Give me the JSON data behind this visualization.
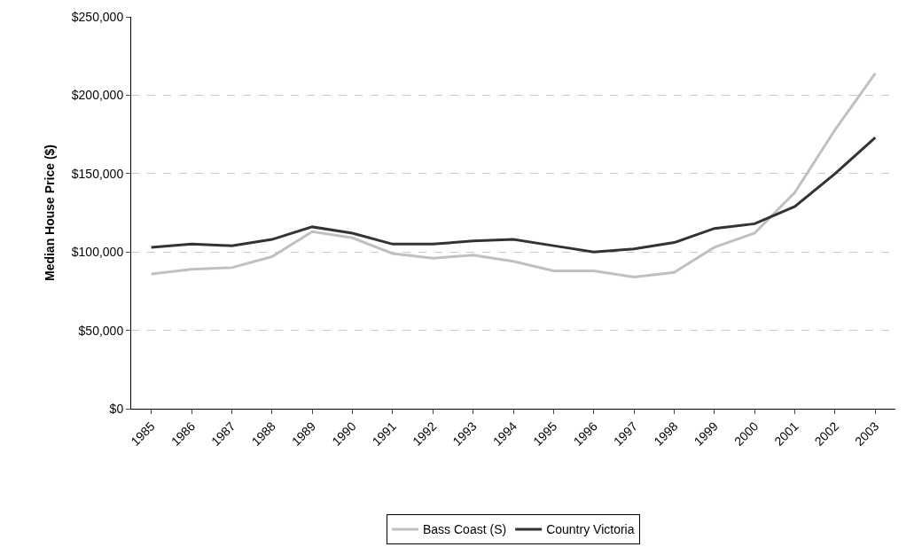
{
  "chart_data": {
    "type": "line",
    "ylabel": "Median House Price ($)",
    "categories": [
      "1985",
      "1986",
      "1987",
      "1988",
      "1989",
      "1990",
      "1991",
      "1992",
      "1993",
      "1994",
      "1995",
      "1996",
      "1997",
      "1998",
      "1999",
      "2000",
      "2001",
      "2002",
      "2003"
    ],
    "series": [
      {
        "name": "Bass Coast (S)",
        "color": "#c0c0c0",
        "values": [
          86000,
          89000,
          90000,
          97000,
          113000,
          109000,
          99000,
          96000,
          98000,
          94000,
          88000,
          88000,
          84000,
          87000,
          103000,
          112000,
          138000,
          178000,
          214000
        ]
      },
      {
        "name": "Country Victoria",
        "color": "#333333",
        "values": [
          103000,
          105000,
          104000,
          108000,
          116000,
          112000,
          105000,
          105000,
          107000,
          108000,
          104000,
          100000,
          102000,
          106000,
          115000,
          118000,
          129000,
          150000,
          173000
        ]
      }
    ],
    "ylim": [
      0,
      250000
    ],
    "yticks": [
      {
        "value": 0,
        "label": "$0"
      },
      {
        "value": 50000,
        "label": "$50,000"
      },
      {
        "value": 100000,
        "label": "$100,000"
      },
      {
        "value": 150000,
        "label": "$150,000"
      },
      {
        "value": 200000,
        "label": "$200,000"
      },
      {
        "value": 250000,
        "label": "$250,000"
      }
    ],
    "grid": "y",
    "legend": "bottom",
    "marker": "none",
    "line_style": "solid"
  }
}
